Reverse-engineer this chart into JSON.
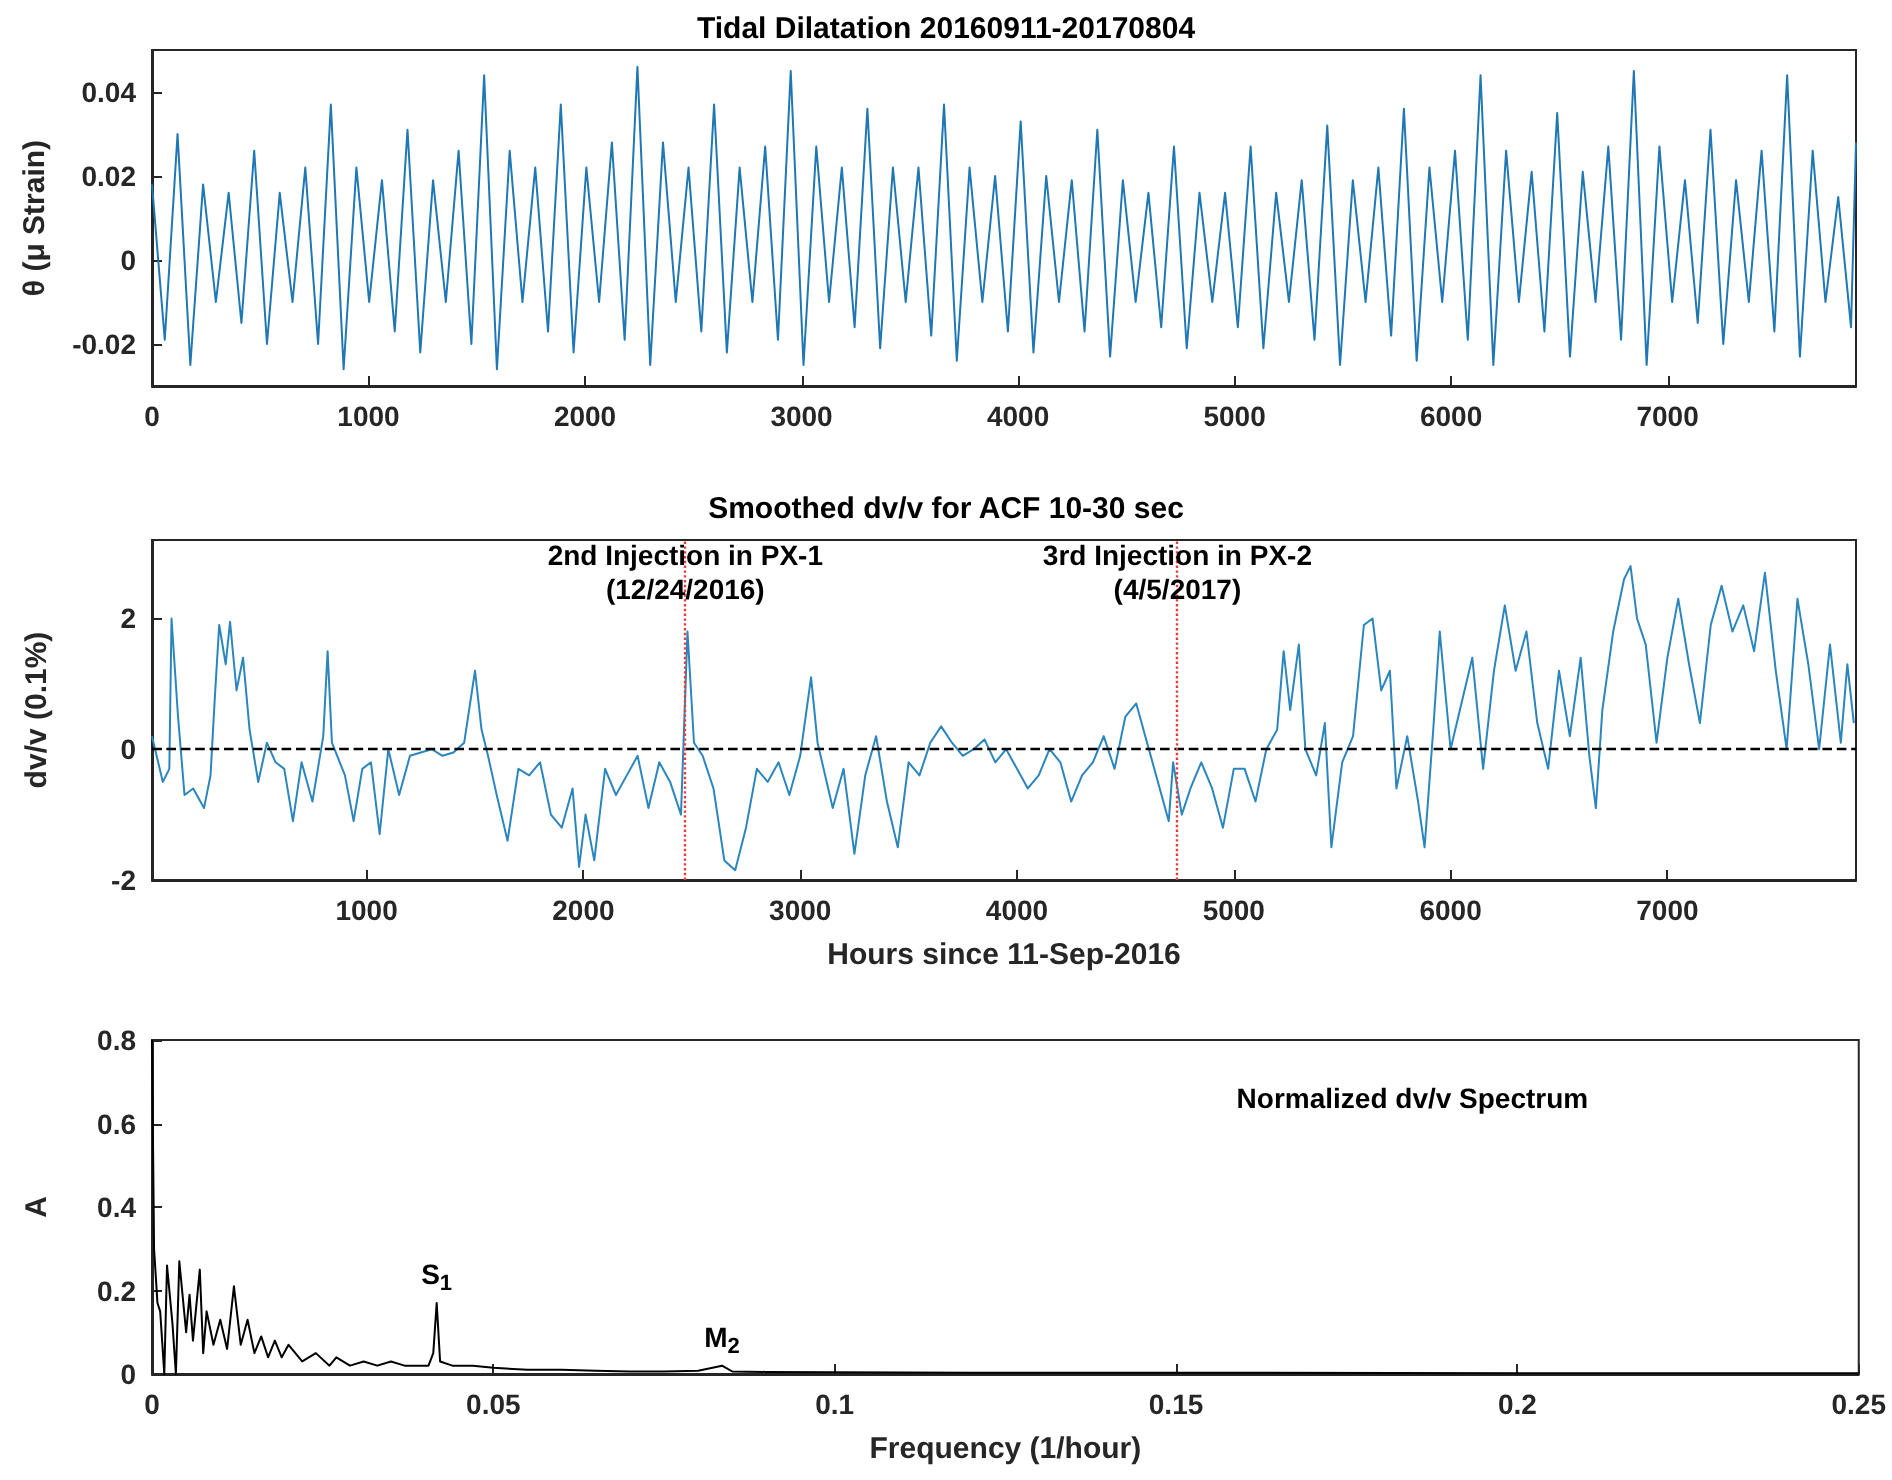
{
  "chart_data": [
    {
      "type": "line",
      "title": "Tidal Dilatation 20160911-20170804",
      "ylabel": "θ (μ Strain)",
      "xlim": [
        0,
        7870
      ],
      "xticks": [
        0,
        1000,
        2000,
        3000,
        4000,
        5000,
        6000,
        7000
      ],
      "ylim": [
        -0.03,
        0.05
      ],
      "yticks": [
        -0.02,
        0,
        0.02,
        0.04
      ],
      "series": [
        {
          "color": "#1f77b4",
          "x": [
            0,
            59,
            118,
            177,
            236,
            295,
            354,
            413,
            472,
            531,
            590,
            649,
            708,
            767,
            826,
            885,
            944,
            1003,
            1062,
            1121,
            1180,
            1239,
            1298,
            1357,
            1416,
            1475,
            1534,
            1593,
            1652,
            1711,
            1770,
            1829,
            1888,
            1947,
            2006,
            2065,
            2124,
            2183,
            2242,
            2301,
            2360,
            2419,
            2478,
            2537,
            2596,
            2655,
            2714,
            2773,
            2832,
            2891,
            2950,
            3009,
            3068,
            3127,
            3186,
            3245,
            3304,
            3363,
            3422,
            3481,
            3540,
            3599,
            3658,
            3717,
            3776,
            3835,
            3894,
            3953,
            4012,
            4071,
            4130,
            4189,
            4248,
            4307,
            4366,
            4425,
            4484,
            4543,
            4602,
            4661,
            4720,
            4779,
            4838,
            4897,
            4956,
            5015,
            5074,
            5133,
            5192,
            5251,
            5310,
            5369,
            5428,
            5487,
            5546,
            5605,
            5664,
            5723,
            5782,
            5841,
            5900,
            5959,
            6018,
            6077,
            6136,
            6195,
            6254,
            6313,
            6372,
            6431,
            6490,
            6549,
            6608,
            6667,
            6726,
            6785,
            6844,
            6903,
            6962,
            7021,
            7080,
            7139,
            7198,
            7257,
            7316,
            7375,
            7434,
            7493,
            7552,
            7611,
            7670,
            7729,
            7788,
            7847,
            7870
          ],
          "values": [
            0.018,
            -0.019,
            0.03,
            -0.025,
            0.018,
            -0.01,
            0.016,
            -0.015,
            0.026,
            -0.02,
            0.016,
            -0.01,
            0.022,
            -0.02,
            0.037,
            -0.026,
            0.022,
            -0.01,
            0.019,
            -0.017,
            0.031,
            -0.022,
            0.019,
            -0.01,
            0.026,
            -0.02,
            0.044,
            -0.026,
            0.026,
            -0.01,
            0.022,
            -0.017,
            0.037,
            -0.022,
            0.022,
            -0.01,
            0.028,
            -0.019,
            0.046,
            -0.025,
            0.028,
            -0.01,
            0.022,
            -0.017,
            0.037,
            -0.022,
            0.022,
            -0.01,
            0.027,
            -0.019,
            0.045,
            -0.025,
            0.027,
            -0.01,
            0.022,
            -0.016,
            0.036,
            -0.021,
            0.022,
            -0.01,
            0.022,
            -0.018,
            0.037,
            -0.024,
            0.022,
            -0.01,
            0.02,
            -0.017,
            0.033,
            -0.022,
            0.02,
            -0.01,
            0.019,
            -0.017,
            0.031,
            -0.023,
            0.019,
            -0.01,
            0.016,
            -0.016,
            0.027,
            -0.021,
            0.016,
            -0.01,
            0.016,
            -0.016,
            0.027,
            -0.021,
            0.016,
            -0.01,
            0.019,
            -0.019,
            0.032,
            -0.025,
            0.019,
            -0.01,
            0.022,
            -0.018,
            0.036,
            -0.024,
            0.022,
            -0.01,
            0.026,
            -0.019,
            0.044,
            -0.025,
            0.026,
            -0.01,
            0.021,
            -0.017,
            0.035,
            -0.023,
            0.021,
            -0.01,
            0.027,
            -0.019,
            0.045,
            -0.025,
            0.027,
            -0.01,
            0.019,
            -0.015,
            0.031,
            -0.02,
            0.019,
            -0.01,
            0.026,
            -0.017,
            0.044,
            -0.023,
            0.026,
            -0.01,
            0.015,
            -0.016,
            0.028
          ]
        }
      ]
    },
    {
      "type": "line",
      "title": "Smoothed dv/v for ACF 10-30 sec",
      "xlabel": "Hours since 11-Sep-2016",
      "ylabel": "dv/v (0.1%)",
      "xlim": [
        10,
        7870
      ],
      "xticks": [
        1000,
        2000,
        3000,
        4000,
        5000,
        6000,
        7000
      ],
      "ylim": [
        -2,
        3.2
      ],
      "yticks": [
        -2,
        0,
        2
      ],
      "ref_lines": [
        {
          "axis": "y",
          "value": 0,
          "color": "#000000",
          "line_style": "dashed"
        },
        {
          "axis": "x",
          "value": 2470,
          "color": "#e04040",
          "line_style": "dotted"
        },
        {
          "axis": "x",
          "value": 4740,
          "color": "#e04040",
          "line_style": "dotted"
        }
      ],
      "annotations": [
        {
          "text": "2nd Injection in PX-1\n(12/24/2016)",
          "x": 2470,
          "y": 2
        },
        {
          "text": "3rd Injection in PX-2\n(4/5/2017)",
          "x": 4740,
          "y": 2
        }
      ],
      "series": [
        {
          "color": "#2b86bd",
          "x": [
            10,
            60,
            90,
            100,
            130,
            160,
            200,
            250,
            280,
            300,
            320,
            350,
            370,
            400,
            430,
            460,
            500,
            540,
            580,
            620,
            660,
            700,
            750,
            800,
            820,
            840,
            900,
            940,
            980,
            1020,
            1060,
            1100,
            1150,
            1200,
            1250,
            1300,
            1350,
            1400,
            1450,
            1500,
            1530,
            1560,
            1600,
            1650,
            1700,
            1750,
            1800,
            1850,
            1900,
            1950,
            1980,
            2010,
            2050,
            2100,
            2150,
            2200,
            2250,
            2300,
            2350,
            2400,
            2450,
            2480,
            2510,
            2550,
            2600,
            2650,
            2700,
            2750,
            2800,
            2850,
            2900,
            2950,
            3000,
            3050,
            3080,
            3150,
            3200,
            3250,
            3300,
            3350,
            3400,
            3450,
            3500,
            3550,
            3600,
            3650,
            3700,
            3750,
            3800,
            3850,
            3900,
            3950,
            4000,
            4050,
            4100,
            4150,
            4200,
            4250,
            4300,
            4350,
            4400,
            4450,
            4500,
            4550,
            4600,
            4650,
            4700,
            4720,
            4760,
            4800,
            4850,
            4900,
            4950,
            5000,
            5050,
            5100,
            5150,
            5200,
            5230,
            5260,
            5300,
            5330,
            5380,
            5420,
            5450,
            5500,
            5550,
            5600,
            5640,
            5680,
            5720,
            5750,
            5800,
            5850,
            5880,
            5920,
            5950,
            6000,
            6050,
            6100,
            6150,
            6200,
            6250,
            6300,
            6350,
            6400,
            6450,
            6500,
            6550,
            6600,
            6640,
            6670,
            6700,
            6750,
            6800,
            6830,
            6860,
            6900,
            6950,
            7000,
            7050,
            7100,
            7150,
            7200,
            7250,
            7300,
            7350,
            7400,
            7450,
            7500,
            7550,
            7600,
            7650,
            7700,
            7750,
            7800,
            7830,
            7860
          ],
          "values": [
            0.2,
            -0.5,
            -0.3,
            2.0,
            0.5,
            -0.7,
            -0.6,
            -0.9,
            -0.4,
            0.8,
            1.9,
            1.3,
            1.95,
            0.9,
            1.4,
            0.3,
            -0.5,
            0.1,
            -0.2,
            -0.3,
            -1.1,
            -0.2,
            -0.8,
            0.2,
            1.5,
            0.1,
            -0.4,
            -1.1,
            -0.3,
            -0.2,
            -1.3,
            0.0,
            -0.7,
            -0.1,
            -0.05,
            0.0,
            -0.1,
            -0.05,
            0.1,
            1.2,
            0.3,
            -0.1,
            -0.7,
            -1.4,
            -0.3,
            -0.4,
            -0.2,
            -1.0,
            -1.2,
            -0.6,
            -1.8,
            -1.0,
            -1.7,
            -0.3,
            -0.7,
            -0.4,
            -0.1,
            -0.9,
            -0.2,
            -0.5,
            -1.0,
            1.8,
            0.1,
            -0.1,
            -0.6,
            -1.7,
            -1.85,
            -1.2,
            -0.3,
            -0.5,
            -0.2,
            -0.7,
            -0.1,
            1.1,
            0.1,
            -0.9,
            -0.3,
            -1.6,
            -0.4,
            0.2,
            -0.8,
            -1.5,
            -0.2,
            -0.4,
            0.1,
            0.35,
            0.1,
            -0.1,
            0.0,
            0.15,
            -0.2,
            0.0,
            -0.3,
            -0.6,
            -0.4,
            0.0,
            -0.2,
            -0.8,
            -0.4,
            -0.2,
            0.2,
            -0.3,
            0.5,
            0.7,
            0.1,
            -0.5,
            -1.1,
            -0.2,
            -1.0,
            -0.6,
            -0.2,
            -0.6,
            -1.2,
            -0.3,
            -0.3,
            -0.8,
            0.0,
            0.3,
            1.5,
            0.6,
            1.6,
            0.0,
            -0.4,
            0.4,
            -1.5,
            -0.2,
            0.2,
            1.9,
            2.0,
            0.9,
            1.2,
            -0.6,
            0.2,
            -0.8,
            -1.5,
            0.3,
            1.8,
            0.0,
            0.7,
            1.4,
            -0.3,
            1.2,
            2.2,
            1.2,
            1.8,
            0.4,
            -0.3,
            1.2,
            0.2,
            1.4,
            -0.1,
            -0.9,
            0.6,
            1.8,
            2.6,
            2.8,
            2.0,
            1.6,
            0.1,
            1.4,
            2.3,
            1.3,
            0.4,
            1.9,
            2.5,
            1.8,
            2.2,
            1.5,
            2.7,
            1.2,
            0.0,
            2.3,
            1.3,
            0.0,
            1.6,
            0.1,
            1.3,
            0.4
          ]
        }
      ]
    },
    {
      "type": "line",
      "xlabel": "Frequency (1/hour)",
      "ylabel": "A",
      "xlim": [
        0,
        0.25
      ],
      "xticks": [
        0,
        0.05,
        0.1,
        0.15,
        0.2,
        0.25
      ],
      "ylim": [
        0,
        0.8
      ],
      "yticks": [
        0,
        0.2,
        0.4,
        0.6,
        0.8
      ],
      "annotations": [
        "Normalized dv/v Spectrum",
        {
          "text": "S$_{1}$",
          "x": 0.0417,
          "y": 0.17
        },
        {
          "text": "M$_{2}$",
          "x": 0.0835,
          "y": 0.02
        }
      ],
      "series": [
        {
          "color": "#000000",
          "x": [
            0,
            0.0003,
            0.0008,
            0.0012,
            0.0018,
            0.0022,
            0.003,
            0.0035,
            0.004,
            0.005,
            0.0055,
            0.006,
            0.007,
            0.0075,
            0.008,
            0.009,
            0.01,
            0.011,
            0.012,
            0.013,
            0.014,
            0.015,
            0.016,
            0.017,
            0.018,
            0.019,
            0.02,
            0.022,
            0.024,
            0.026,
            0.027,
            0.029,
            0.031,
            0.033,
            0.035,
            0.037,
            0.039,
            0.0405,
            0.0412,
            0.0417,
            0.0422,
            0.044,
            0.047,
            0.05,
            0.055,
            0.06,
            0.065,
            0.07,
            0.075,
            0.08,
            0.0835,
            0.085,
            0.09,
            0.1,
            0.12,
            0.15,
            0.2,
            0.25
          ],
          "values": [
            0.8,
            0.3,
            0.17,
            0.15,
            0.0,
            0.26,
            0.12,
            0.0,
            0.27,
            0.1,
            0.19,
            0.08,
            0.25,
            0.05,
            0.15,
            0.07,
            0.13,
            0.06,
            0.21,
            0.07,
            0.13,
            0.05,
            0.09,
            0.04,
            0.08,
            0.04,
            0.07,
            0.03,
            0.05,
            0.02,
            0.04,
            0.02,
            0.03,
            0.02,
            0.03,
            0.02,
            0.02,
            0.02,
            0.05,
            0.17,
            0.03,
            0.02,
            0.02,
            0.015,
            0.01,
            0.01,
            0.008,
            0.006,
            0.006,
            0.008,
            0.02,
            0.006,
            0.005,
            0.004,
            0.003,
            0.003,
            0.002,
            0.002
          ]
        }
      ]
    }
  ]
}
